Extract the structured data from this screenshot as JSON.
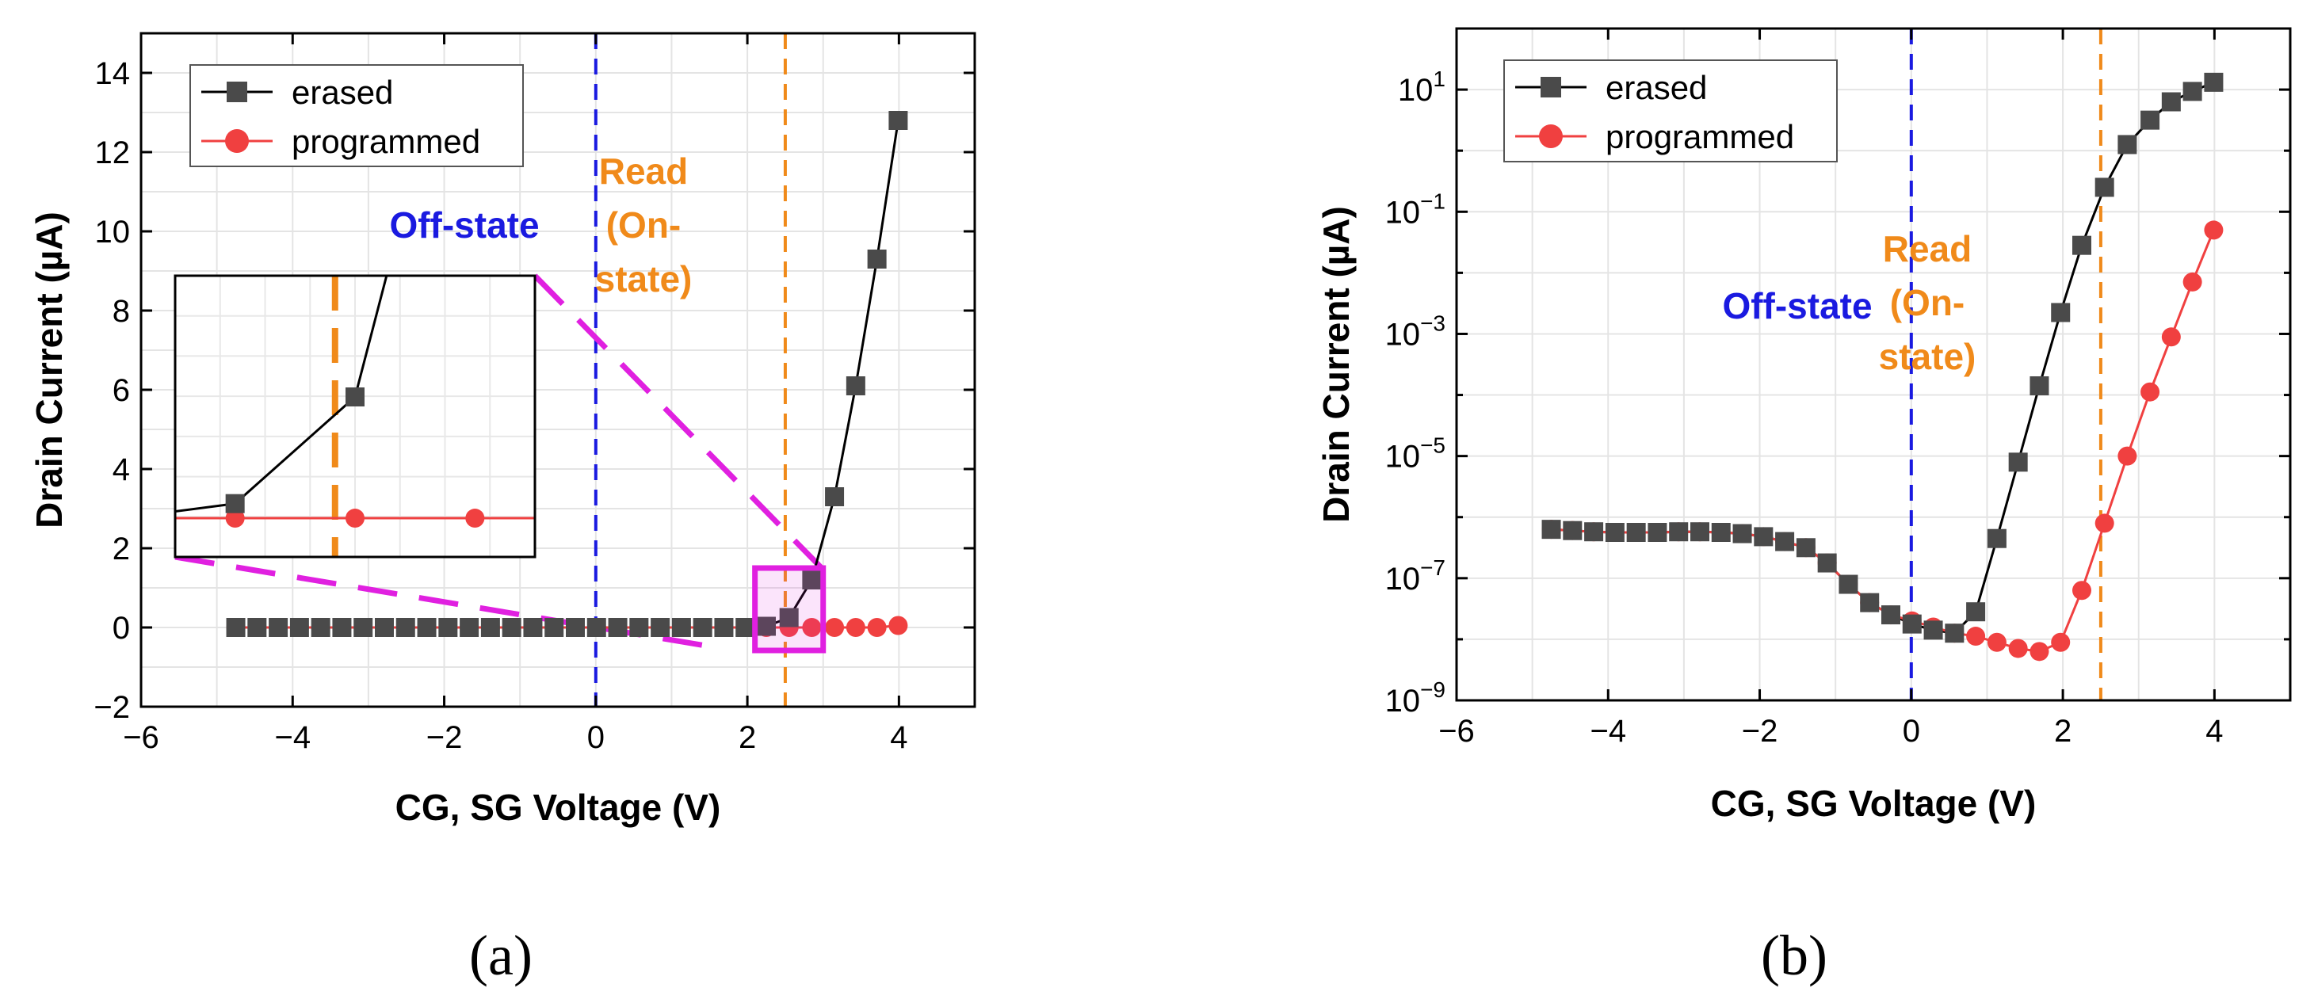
{
  "chart_data": [
    {
      "type": "line",
      "panel_label": "(a)",
      "scale": "linear",
      "title": "",
      "xlabel": "CG, SG Voltage (V)",
      "ylabel": "Drain Current (µA)",
      "xlim": [
        -6,
        5
      ],
      "ylim": [
        -2,
        15
      ],
      "xticks": [
        -6,
        -4,
        -2,
        0,
        2,
        4
      ],
      "xtick_labels": [
        "−6",
        "−4",
        "−2",
        "0",
        "2",
        "4"
      ],
      "yticks": [
        -2,
        0,
        2,
        4,
        6,
        8,
        10,
        12,
        14
      ],
      "ytick_labels": [
        "−2",
        "0",
        "2",
        "4",
        "6",
        "8",
        "10",
        "12",
        "14"
      ],
      "grid": true,
      "legend": "top-left",
      "series": [
        {
          "name": "erased",
          "marker": "square",
          "color": "#4a4a4a",
          "x": [
            -4.75,
            -4.47,
            -4.19,
            -3.91,
            -3.63,
            -3.35,
            -3.07,
            -2.79,
            -2.51,
            -2.23,
            -1.95,
            -1.67,
            -1.39,
            -1.11,
            -0.83,
            -0.55,
            -0.27,
            0.01,
            0.29,
            0.57,
            0.85,
            1.13,
            1.41,
            1.69,
            1.97,
            2.25,
            2.55,
            2.85,
            3.15,
            3.43,
            3.71,
            3.99
          ],
          "y": [
            0,
            0,
            0,
            0,
            0,
            0,
            0,
            0,
            0,
            0,
            0,
            0,
            0,
            0,
            0,
            0,
            0,
            0,
            0,
            0,
            0,
            0,
            0,
            0,
            0,
            0.03,
            0.25,
            1.2,
            3.3,
            6.1,
            9.3,
            12.8
          ]
        },
        {
          "name": "programmed",
          "marker": "circle",
          "color": "#f04040",
          "x": [
            -4.75,
            -4.47,
            -4.19,
            -3.91,
            -3.63,
            -3.35,
            -3.07,
            -2.79,
            -2.51,
            -2.23,
            -1.95,
            -1.67,
            -1.39,
            -1.11,
            -0.83,
            -0.55,
            -0.27,
            0.01,
            0.29,
            0.57,
            0.85,
            1.13,
            1.41,
            1.69,
            1.97,
            2.25,
            2.55,
            2.85,
            3.15,
            3.43,
            3.71,
            3.99
          ],
          "y": [
            0,
            0,
            0,
            0,
            0,
            0,
            0,
            0,
            0,
            0,
            0,
            0,
            0,
            0,
            0,
            0,
            0,
            0,
            0,
            0,
            0,
            0,
            0,
            0,
            0,
            0,
            0,
            0,
            0,
            0,
            0,
            0.05
          ]
        }
      ],
      "vlines": [
        {
          "x": 0,
          "color": "#1a1ae0",
          "label": "Off-state"
        },
        {
          "x": 2.5,
          "color": "#f08a1a",
          "label_lines": [
            "Read",
            "(On-",
            "state)"
          ]
        }
      ],
      "inset": {
        "note": "zoom of highlighted box near 2.1 to 3.0 V",
        "xlim": [
          2.1,
          3.0
        ],
        "ylim": [
          -0.08,
          0.5
        ],
        "vline_x": 2.5,
        "box_color": "#e020e0"
      }
    },
    {
      "type": "line",
      "panel_label": "(b)",
      "scale": "log",
      "title": "",
      "xlabel": "CG, SG Voltage (V)",
      "ylabel": "Drain Current (µA)",
      "xlim": [
        -6,
        5
      ],
      "ylim_exponent": [
        -9,
        2
      ],
      "xticks": [
        -6,
        -4,
        -2,
        0,
        2,
        4
      ],
      "xtick_labels": [
        "−6",
        "−4",
        "−2",
        "0",
        "2",
        "4"
      ],
      "yticks_exponent": [
        -9,
        -7,
        -5,
        -3,
        -1,
        1
      ],
      "ytick_bases": [
        "10",
        "10",
        "10",
        "10",
        "10",
        "10"
      ],
      "ytick_exponents": [
        "−9",
        "−7",
        "−5",
        "−3",
        "−1",
        "1"
      ],
      "grid": true,
      "legend": "top-left",
      "series": [
        {
          "name": "erased",
          "marker": "square",
          "color": "#4a4a4a",
          "x": [
            -4.75,
            -4.47,
            -4.19,
            -3.91,
            -3.63,
            -3.35,
            -3.07,
            -2.79,
            -2.51,
            -2.23,
            -1.95,
            -1.67,
            -1.39,
            -1.11,
            -0.83,
            -0.55,
            -0.27,
            0.01,
            0.29,
            0.57,
            0.85,
            1.13,
            1.41,
            1.69,
            1.97,
            2.25,
            2.55,
            2.85,
            3.15,
            3.43,
            3.71,
            3.99
          ],
          "y_log10": [
            -6.2,
            -6.22,
            -6.24,
            -6.25,
            -6.25,
            -6.25,
            -6.24,
            -6.24,
            -6.25,
            -6.27,
            -6.32,
            -6.4,
            -6.5,
            -6.75,
            -7.1,
            -7.4,
            -7.6,
            -7.75,
            -7.85,
            -7.9,
            -7.55,
            -6.35,
            -5.1,
            -3.85,
            -2.65,
            -1.55,
            -0.6,
            0.1,
            0.5,
            0.8,
            0.97,
            1.12
          ]
        },
        {
          "name": "programmed",
          "marker": "circle",
          "color": "#f04040",
          "x": [
            -4.75,
            -4.47,
            -4.19,
            -3.91,
            -3.63,
            -3.35,
            -3.07,
            -2.79,
            -2.51,
            -2.23,
            -1.95,
            -1.67,
            -1.39,
            -1.11,
            -0.83,
            -0.55,
            -0.27,
            0.01,
            0.29,
            0.57,
            0.85,
            1.13,
            1.41,
            1.69,
            1.97,
            2.25,
            2.55,
            2.85,
            3.15,
            3.43,
            3.71,
            3.99
          ],
          "y_log10": [
            -6.2,
            -6.22,
            -6.24,
            -6.25,
            -6.25,
            -6.25,
            -6.24,
            -6.24,
            -6.25,
            -6.27,
            -6.32,
            -6.4,
            -6.5,
            -6.75,
            -7.1,
            -7.4,
            -7.6,
            -7.7,
            -7.8,
            -7.9,
            -7.95,
            -8.05,
            -8.15,
            -8.2,
            -8.05,
            -7.2,
            -6.1,
            -5.0,
            -3.95,
            -3.05,
            -2.15,
            -1.3
          ]
        }
      ],
      "vlines": [
        {
          "x": 0,
          "color": "#1a1ae0",
          "label": "Off-state"
        },
        {
          "x": 2.5,
          "color": "#f08a1a",
          "label_lines": [
            "Read",
            "(On-",
            "state)"
          ]
        }
      ]
    }
  ]
}
